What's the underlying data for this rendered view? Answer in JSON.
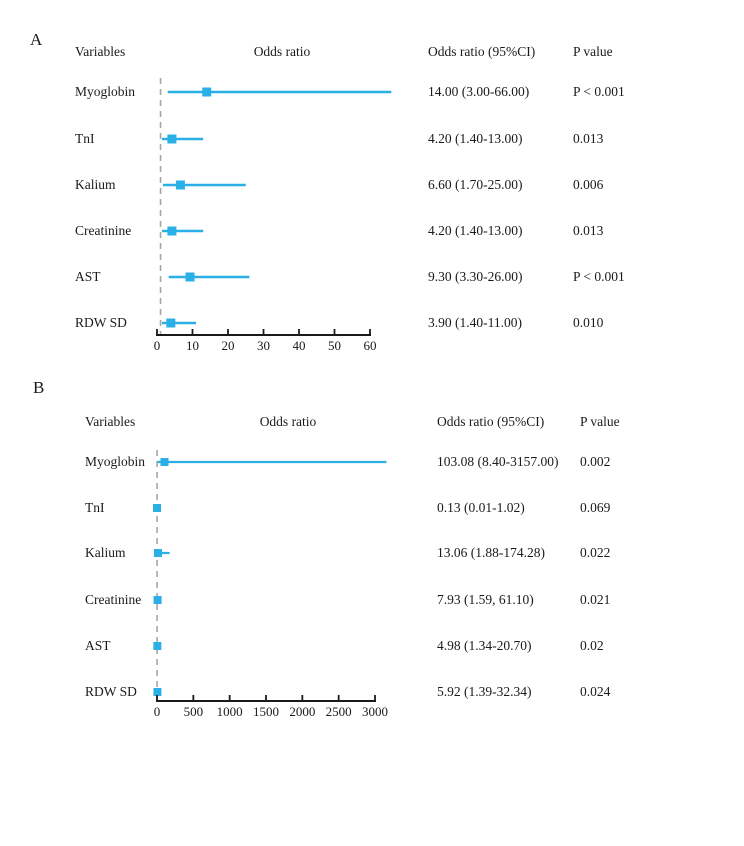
{
  "page": {
    "background": "#ffffff"
  },
  "colors": {
    "marker": "#2AB0E6",
    "ref_line": "#A6A6A6",
    "axis": "#1A1A1A",
    "text": "#1A1A1A"
  },
  "chart_data": [
    {
      "type": "scatter",
      "variant": "forest-plot",
      "panel_label": "A",
      "title": "Odds ratio",
      "headers": {
        "variables": "Variables",
        "plot_title": "Odds ratio",
        "or_ci": "Odds ratio (95%CI)",
        "p_value": "P value"
      },
      "categories": [
        "Myoglobin",
        "TnI",
        "Kalium",
        "Creatinine",
        "AST",
        "RDW SD"
      ],
      "x_ticks": [
        0,
        10,
        20,
        30,
        40,
        50,
        60
      ],
      "xlim": [
        0,
        60
      ],
      "ref_line_x": 1,
      "grid": false,
      "legend_position": "none",
      "rows": [
        {
          "variable": "Myoglobin",
          "or": 14.0,
          "ci_low": 3.0,
          "ci_high": 66.0,
          "or_ci_text": "14.00 (3.00-66.00)",
          "p_text": "P < 0.001"
        },
        {
          "variable": "TnI",
          "or": 4.2,
          "ci_low": 1.4,
          "ci_high": 13.0,
          "or_ci_text": "4.20 (1.40-13.00)",
          "p_text": "0.013"
        },
        {
          "variable": "Kalium",
          "or": 6.6,
          "ci_low": 1.7,
          "ci_high": 25.0,
          "or_ci_text": "6.60 (1.70-25.00)",
          "p_text": "0.006"
        },
        {
          "variable": "Creatinine",
          "or": 4.2,
          "ci_low": 1.4,
          "ci_high": 13.0,
          "or_ci_text": "4.20 (1.40-13.00)",
          "p_text": "0.013"
        },
        {
          "variable": "AST",
          "or": 9.3,
          "ci_low": 3.3,
          "ci_high": 26.0,
          "or_ci_text": "9.30 (3.30-26.00)",
          "p_text": "P < 0.001"
        },
        {
          "variable": "RDW SD",
          "or": 3.9,
          "ci_low": 1.4,
          "ci_high": 11.0,
          "or_ci_text": "3.90 (1.40-11.00)",
          "p_text": "0.010"
        }
      ]
    },
    {
      "type": "scatter",
      "variant": "forest-plot",
      "panel_label": "B",
      "title": "Odds ratio",
      "headers": {
        "variables": "Variables",
        "plot_title": "Odds ratio",
        "or_ci": "Odds ratio (95%CI)",
        "p_value": "P value"
      },
      "categories": [
        "Myoglobin",
        "TnI",
        "Kalium",
        "Creatinine",
        "AST",
        "RDW SD"
      ],
      "x_ticks": [
        0,
        500,
        1000,
        1500,
        2000,
        2500,
        3000
      ],
      "xlim": [
        0,
        3000
      ],
      "ref_line_x": 1,
      "grid": false,
      "legend_position": "none",
      "rows": [
        {
          "variable": "Myoglobin",
          "or": 103.08,
          "ci_low": 8.4,
          "ci_high": 3157.0,
          "or_ci_text": "103.08 (8.40-3157.00)",
          "p_text": "0.002"
        },
        {
          "variable": "TnI",
          "or": 0.13,
          "ci_low": 0.01,
          "ci_high": 1.02,
          "or_ci_text": "0.13 (0.01-1.02)",
          "p_text": "0.069"
        },
        {
          "variable": "Kalium",
          "or": 13.06,
          "ci_low": 1.88,
          "ci_high": 174.28,
          "or_ci_text": "13.06 (1.88-174.28)",
          "p_text": "0.022"
        },
        {
          "variable": "Creatinine",
          "or": 7.93,
          "ci_low": 1.59,
          "ci_high": 61.1,
          "or_ci_text": "7.93 (1.59, 61.10)",
          "p_text": "0.021"
        },
        {
          "variable": "AST",
          "or": 4.98,
          "ci_low": 1.34,
          "ci_high": 20.7,
          "or_ci_text": "4.98 (1.34-20.70)",
          "p_text": "0.02"
        },
        {
          "variable": "RDW SD",
          "or": 5.92,
          "ci_low": 1.39,
          "ci_high": 32.34,
          "or_ci_text": "5.92 (1.39-32.34)",
          "p_text": "0.024"
        }
      ]
    }
  ]
}
